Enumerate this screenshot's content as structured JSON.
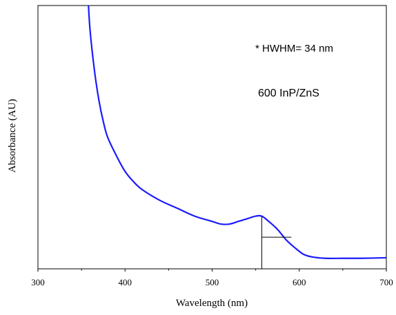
{
  "chart_data": {
    "type": "line",
    "xlabel": "Wavelength (nm)",
    "ylabel": "Absorbance (AU)",
    "xlim": [
      300,
      700
    ],
    "ylim": [
      0,
      1
    ],
    "x_ticks": [
      300,
      400,
      500,
      600,
      700
    ],
    "y_ticks_labeled": false,
    "grid": false,
    "annotations": [
      "* HWHM= 34 nm",
      "600 InP/ZnS"
    ],
    "hwhm_nm": 34,
    "peak_wavelength_nm": 557,
    "series": [
      {
        "color": "#1a1aff",
        "x": [
          358,
          360,
          365,
          370,
          375,
          380,
          390,
          400,
          410,
          420,
          440,
          460,
          480,
          500,
          510,
          520,
          530,
          540,
          550,
          557,
          565,
          575,
          585,
          595,
          605,
          615,
          630,
          650,
          670,
          700
        ],
        "y": [
          1.0,
          0.9,
          0.75,
          0.64,
          0.56,
          0.5,
          0.43,
          0.37,
          0.33,
          0.3,
          0.26,
          0.23,
          0.2,
          0.18,
          0.17,
          0.17,
          0.18,
          0.19,
          0.2,
          0.2,
          0.18,
          0.15,
          0.11,
          0.08,
          0.055,
          0.045,
          0.04,
          0.04,
          0.04,
          0.042
        ]
      }
    ]
  }
}
